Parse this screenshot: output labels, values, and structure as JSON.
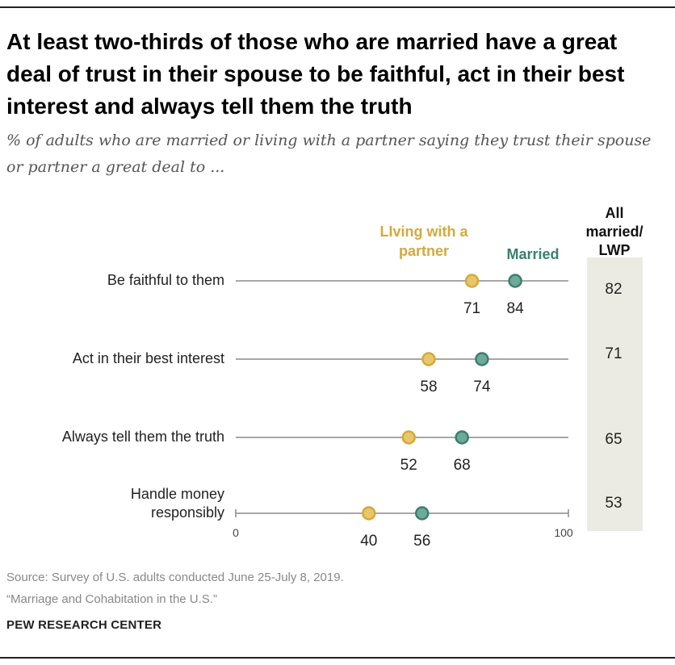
{
  "title": "At least two-thirds of those who are married have a great deal of trust in their spouse to be faithful, act in their best interest and always tell them the truth",
  "subtitle": "% of adults who are married or living with a partner saying they trust their spouse or partner a great deal to ...",
  "source": {
    "line1": "Source: Survey of U.S. adults conducted June 25-July 8, 2019.",
    "line2": "“Marriage and Cohabitation in the U.S.”"
  },
  "brand": "PEW RESEARCH CENTER",
  "colors": {
    "living": "#d4a93c",
    "married": "#3b7f6f",
    "axis": "#8a8a8a",
    "panel": "#ecebe3"
  },
  "chart_data": {
    "type": "dot",
    "categories": [
      [
        "Be faithful to them"
      ],
      [
        "Act in their best interest"
      ],
      [
        "Always tell them the truth"
      ],
      [
        "Handle money",
        "responsibly"
      ]
    ],
    "series": [
      {
        "name": [
          "LIving with a",
          "partner"
        ],
        "values": [
          71,
          58,
          52,
          40
        ]
      },
      {
        "name": [
          "Married"
        ],
        "values": [
          84,
          74,
          68,
          56
        ]
      }
    ],
    "all_column": {
      "label": [
        "All",
        "married/",
        "LWP"
      ],
      "values": [
        82,
        71,
        65,
        53
      ]
    },
    "xlim": [
      0,
      100
    ],
    "tick_labels": [
      "0",
      "100"
    ]
  }
}
